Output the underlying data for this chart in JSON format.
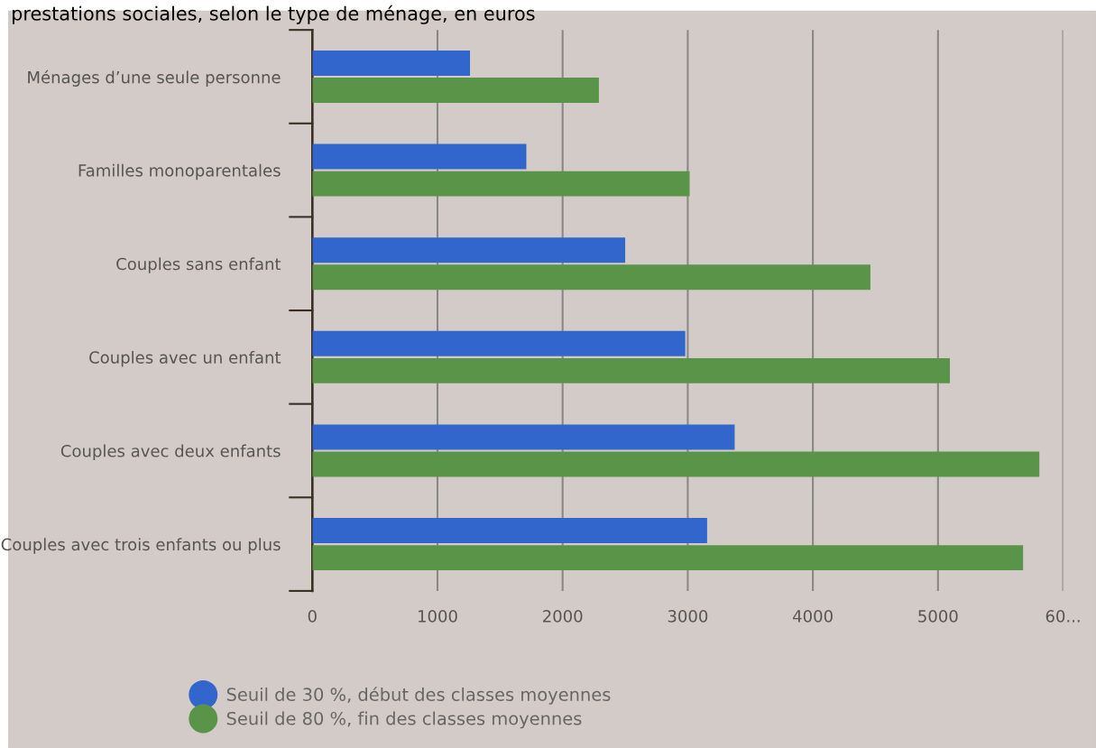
{
  "chart_data": {
    "type": "bar",
    "orientation": "horizontal",
    "title": "prestations sociales, selon le type de ménage, en euros",
    "categories": [
      "Ménages d’une seule personne",
      "Familles monoparentales",
      "Couples sans enfant",
      "Couples avec un enfant",
      "Couples avec deux enfants",
      "Couples avec trois enfants ou plus"
    ],
    "series": [
      {
        "name": "Seuil de 30 %, début des classes moyennes",
        "color": "#3366cc",
        "values": [
          1260,
          1710,
          2500,
          2980,
          3375,
          3155
        ]
      },
      {
        "name": "Seuil de 80 %, fin des classes moyennes",
        "color": "#5a9448",
        "values": [
          2290,
          3015,
          4460,
          5095,
          5810,
          5680
        ]
      }
    ],
    "xlim": [
      0,
      6000
    ],
    "xticks": [
      0,
      1000,
      2000,
      3000,
      4000,
      5000,
      {
        "value": 6000,
        "label": "60..."
      }
    ],
    "grid": "x",
    "legend": "bottom left"
  }
}
